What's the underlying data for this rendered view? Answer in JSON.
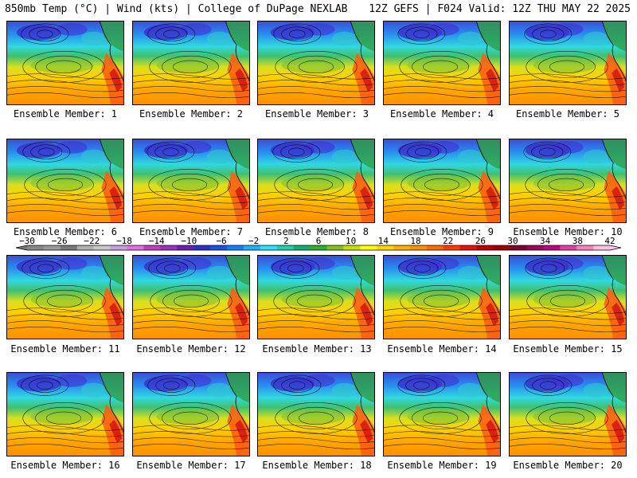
{
  "header": {
    "left": "850mb Temp (°C) | Wind (kts) | College of DuPage NEXLAB",
    "right": "12Z GEFS | F024 Valid: 12Z THU MAY 22 2025"
  },
  "members": [
    {
      "label": "Ensemble Member: 1"
    },
    {
      "label": "Ensemble Member: 2"
    },
    {
      "label": "Ensemble Member: 3"
    },
    {
      "label": "Ensemble Member: 4"
    },
    {
      "label": "Ensemble Member: 5"
    },
    {
      "label": "Ensemble Member: 6"
    },
    {
      "label": "Ensemble Member: 7"
    },
    {
      "label": "Ensemble Member: 8"
    },
    {
      "label": "Ensemble Member: 9"
    },
    {
      "label": "Ensemble Member: 10"
    },
    {
      "label": "Ensemble Member: 11"
    },
    {
      "label": "Ensemble Member: 12"
    },
    {
      "label": "Ensemble Member: 13"
    },
    {
      "label": "Ensemble Member: 14"
    },
    {
      "label": "Ensemble Member: 15"
    },
    {
      "label": "Ensemble Member: 16"
    },
    {
      "label": "Ensemble Member: 17"
    },
    {
      "label": "Ensemble Member: 18"
    },
    {
      "label": "Ensemble Member: 19"
    },
    {
      "label": "Ensemble Member: 20"
    }
  ],
  "colorbar": {
    "tick_labels": [
      "−30",
      "−26",
      "−22",
      "−18",
      "−14",
      "−10",
      "−6",
      "−2",
      "2",
      "6",
      "10",
      "14",
      "18",
      "22",
      "26",
      "30",
      "34",
      "38",
      "42"
    ],
    "colors": [
      "#888888",
      "#9a9a9a",
      "#7a7a7a",
      "#b0b0b0",
      "#c8c8c8",
      "#c6a0d8",
      "#e070e0",
      "#c040c0",
      "#9a30c0",
      "#6a20b0",
      "#3030c8",
      "#2050e0",
      "#1080ff",
      "#20b0ff",
      "#30e0ff",
      "#20d0b0",
      "#10b070",
      "#30b030",
      "#80c020",
      "#c8e000",
      "#ffff00",
      "#ffd800",
      "#ffb000",
      "#ff9000",
      "#ff6a00",
      "#ff3a00",
      "#e81010",
      "#c00000",
      "#a00000",
      "#800030",
      "#a00060",
      "#c00080",
      "#e040a0",
      "#ff80c0",
      "#ffc0e0"
    ]
  }
}
